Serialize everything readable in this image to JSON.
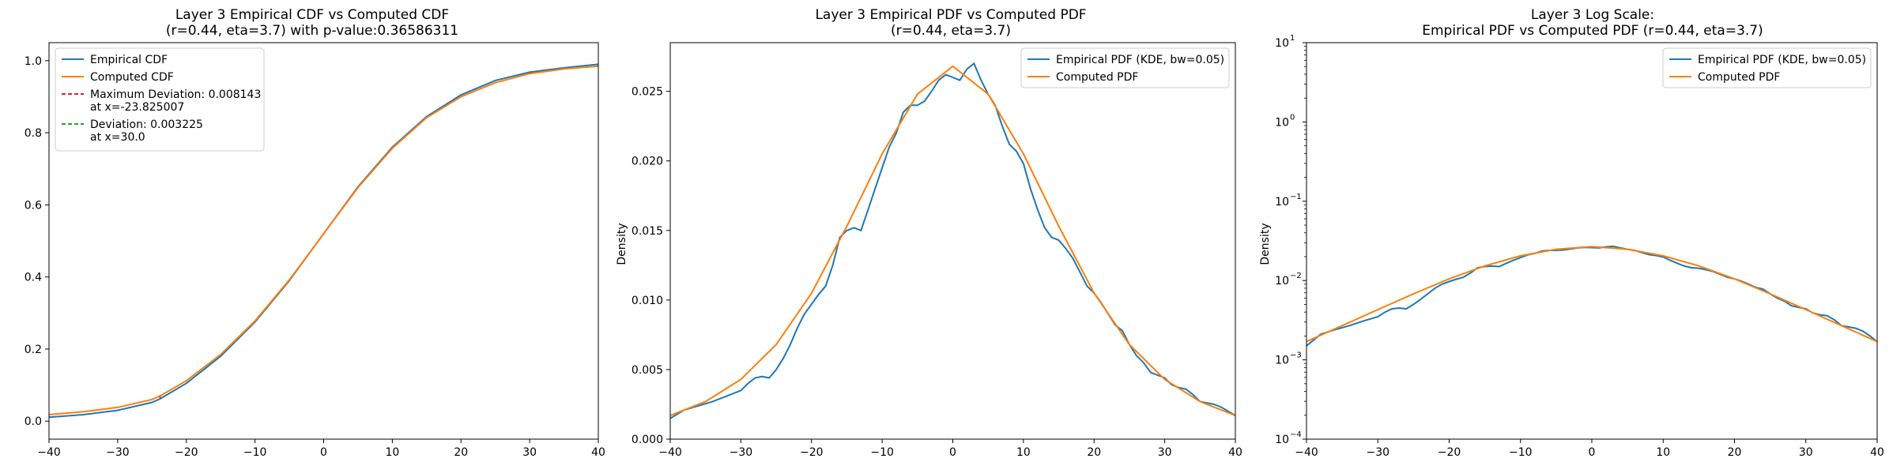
{
  "colors": {
    "empirical": "#1f77b4",
    "computed": "#ff7f0e",
    "max_deviation": "#d62728",
    "deviation": "#2ca02c"
  },
  "chart_data": [
    {
      "type": "line",
      "title_line1": "Layer 3 Empirical CDF vs Computed CDF",
      "title_line2": "(r=0.44, eta=3.7) with p-value:0.36586311",
      "xlabel": "",
      "ylabel": "",
      "xlim": [
        -40,
        40
      ],
      "ylim": [
        -0.05,
        1.05
      ],
      "xticks": [
        -40,
        -30,
        -20,
        -10,
        0,
        10,
        20,
        30,
        40
      ],
      "xtick_labels": [
        "−40",
        "−30",
        "−20",
        "−10",
        "0",
        "10",
        "20",
        "30",
        "40"
      ],
      "yticks": [
        0.0,
        0.2,
        0.4,
        0.6,
        0.8,
        1.0
      ],
      "ytick_labels": [
        "0.0",
        "0.2",
        "0.4",
        "0.6",
        "0.8",
        "1.0"
      ],
      "scale": "linear",
      "grid": false,
      "legend_position": "top-left",
      "legend": [
        {
          "label": "Empirical CDF",
          "color_key": "empirical",
          "style": "solid"
        },
        {
          "label": "Computed CDF",
          "color_key": "computed",
          "style": "solid"
        },
        {
          "label": "Maximum Deviation: 0.008143",
          "label2": "at x=-23.825007",
          "color_key": "max_deviation",
          "style": "dashed"
        },
        {
          "label": "Deviation: 0.003225",
          "label2": "at x=30.0",
          "color_key": "deviation",
          "style": "dashed"
        }
      ],
      "series": [
        {
          "name": "Empirical CDF",
          "color_key": "empirical",
          "x": [
            -40,
            -35,
            -30,
            -25,
            -23.8,
            -20,
            -15,
            -10,
            -5,
            0,
            5,
            10,
            15,
            20,
            25,
            30,
            35,
            40
          ],
          "y": [
            0.011,
            0.018,
            0.03,
            0.052,
            0.062,
            0.105,
            0.18,
            0.275,
            0.39,
            0.52,
            0.65,
            0.76,
            0.845,
            0.905,
            0.945,
            0.968,
            0.98,
            0.99
          ]
        },
        {
          "name": "Computed CDF",
          "color_key": "computed",
          "x": [
            -40,
            -35,
            -30,
            -25,
            -23.8,
            -20,
            -15,
            -10,
            -5,
            0,
            5,
            10,
            15,
            20,
            25,
            30,
            35,
            40
          ],
          "y": [
            0.018,
            0.026,
            0.038,
            0.06,
            0.07,
            0.112,
            0.185,
            0.278,
            0.392,
            0.52,
            0.648,
            0.757,
            0.842,
            0.9,
            0.939,
            0.964,
            0.977,
            0.985
          ]
        }
      ]
    },
    {
      "type": "line",
      "title_line1": "Layer 3 Empirical PDF vs Computed PDF",
      "title_line2": "(r=0.44, eta=3.7)",
      "xlabel": "",
      "ylabel": "Density",
      "xlim": [
        -40,
        40
      ],
      "ylim": [
        0,
        0.0285
      ],
      "xticks": [
        -40,
        -30,
        -20,
        -10,
        0,
        10,
        20,
        30,
        40
      ],
      "xtick_labels": [
        "−40",
        "−30",
        "−20",
        "−10",
        "0",
        "10",
        "20",
        "30",
        "40"
      ],
      "yticks": [
        0.0,
        0.005,
        0.01,
        0.015,
        0.02,
        0.025
      ],
      "ytick_labels": [
        "0.000",
        "0.005",
        "0.010",
        "0.015",
        "0.020",
        "0.025"
      ],
      "scale": "linear",
      "grid": false,
      "legend_position": "top-right",
      "legend": [
        {
          "label": "Empirical PDF (KDE, bw=0.05)",
          "color_key": "empirical",
          "style": "solid"
        },
        {
          "label": "Computed PDF",
          "color_key": "computed",
          "style": "solid"
        }
      ],
      "series": [
        {
          "name": "Empirical PDF (KDE, bw=0.05)",
          "color_key": "empirical",
          "x": [
            -40,
            -38,
            -36,
            -34,
            -32,
            -30,
            -29,
            -28,
            -27,
            -26,
            -25,
            -24,
            -23,
            -22,
            -21,
            -20,
            -19,
            -18,
            -17,
            -16,
            -15,
            -14,
            -13,
            -12,
            -11,
            -10,
            -9,
            -8,
            -7,
            -6,
            -5,
            -4,
            -3,
            -2,
            -1,
            0,
            1,
            2,
            3,
            4,
            5,
            6,
            7,
            8,
            9,
            10,
            11,
            12,
            13,
            14,
            15,
            16,
            17,
            18,
            19,
            20,
            21,
            22,
            23,
            24,
            25,
            26,
            27,
            28,
            29,
            30,
            31,
            32,
            33,
            34,
            35,
            36,
            37,
            38,
            39,
            40
          ],
          "y": [
            0.0015,
            0.0021,
            0.0024,
            0.0027,
            0.0031,
            0.0035,
            0.004,
            0.0044,
            0.0045,
            0.0044,
            0.005,
            0.0058,
            0.0068,
            0.008,
            0.009,
            0.0097,
            0.0104,
            0.011,
            0.0125,
            0.0145,
            0.015,
            0.0152,
            0.015,
            0.0165,
            0.018,
            0.0195,
            0.021,
            0.022,
            0.0235,
            0.024,
            0.024,
            0.0243,
            0.025,
            0.0258,
            0.0262,
            0.026,
            0.0258,
            0.0266,
            0.027,
            0.0258,
            0.0248,
            0.024,
            0.0225,
            0.0212,
            0.0207,
            0.0198,
            0.018,
            0.0165,
            0.0152,
            0.0145,
            0.0143,
            0.0137,
            0.013,
            0.012,
            0.011,
            0.0105,
            0.0098,
            0.009,
            0.0082,
            0.0078,
            0.0068,
            0.006,
            0.0055,
            0.0048,
            0.0046,
            0.0044,
            0.0039,
            0.0037,
            0.0036,
            0.0032,
            0.0027,
            0.0026,
            0.0025,
            0.0023,
            0.002,
            0.0017
          ]
        },
        {
          "name": "Computed PDF",
          "color_key": "computed",
          "x": [
            -40,
            -35,
            -30,
            -25,
            -20,
            -15,
            -10,
            -5,
            0,
            5,
            10,
            15,
            20,
            25,
            30,
            35,
            40
          ],
          "y": [
            0.0017,
            0.0027,
            0.0043,
            0.0068,
            0.0105,
            0.0153,
            0.0205,
            0.0248,
            0.0268,
            0.0248,
            0.0205,
            0.0153,
            0.0105,
            0.0068,
            0.0043,
            0.0027,
            0.0017
          ]
        }
      ]
    },
    {
      "type": "line",
      "title_line1": "Layer 3 Log Scale:",
      "title_line2": "Empirical PDF vs Computed PDF (r=0.44, eta=3.7)",
      "xlabel": "",
      "ylabel": "Density",
      "xlim": [
        -40,
        40
      ],
      "ylim": [
        0.0001,
        10
      ],
      "xticks": [
        -40,
        -30,
        -20,
        -10,
        0,
        10,
        20,
        30,
        40
      ],
      "xtick_labels": [
        "−40",
        "−30",
        "−20",
        "−10",
        "0",
        "10",
        "20",
        "30",
        "40"
      ],
      "yticks": [
        0.0001,
        0.001,
        0.01,
        0.1,
        1,
        10
      ],
      "ytick_labels": [
        "10",
        "10",
        "10",
        "10",
        "10",
        "10"
      ],
      "ytick_exponents": [
        "−4",
        "−3",
        "−2",
        "−1",
        "0",
        "1"
      ],
      "scale": "log",
      "grid": false,
      "legend_position": "top-right",
      "legend": [
        {
          "label": "Empirical PDF (KDE, bw=0.05)",
          "color_key": "empirical",
          "style": "solid"
        },
        {
          "label": "Computed PDF",
          "color_key": "computed",
          "style": "solid"
        }
      ],
      "series_ref": [
        0,
        1
      ]
    }
  ]
}
